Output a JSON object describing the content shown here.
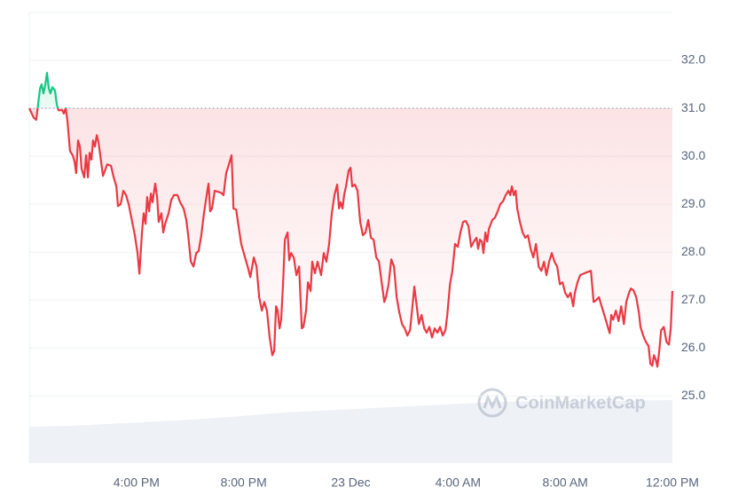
{
  "chart_data": {
    "type": "line",
    "watermark": "CoinMarketCap",
    "baseline": 31.0,
    "color_up": "#16c784",
    "color_down": "#ea3943",
    "xlim": [
      0,
      24
    ],
    "xticks": [
      {
        "value": 4,
        "label": "4:00 PM"
      },
      {
        "value": 8,
        "label": "8:00 PM"
      },
      {
        "value": 12,
        "label": "23 Dec"
      },
      {
        "value": 16,
        "label": "4:00 AM"
      },
      {
        "value": 20,
        "label": "8:00 AM"
      },
      {
        "value": 24,
        "label": "12:00 PM"
      }
    ],
    "ylim": [
      23.6,
      33.0
    ],
    "yticks": [
      {
        "value": 25,
        "label": "25.0"
      },
      {
        "value": 26,
        "label": "26.0"
      },
      {
        "value": 27,
        "label": "27.0"
      },
      {
        "value": 28,
        "label": "28.0"
      },
      {
        "value": 29,
        "label": "29.0"
      },
      {
        "value": 30,
        "label": "30.0"
      },
      {
        "value": 31,
        "label": "31.0"
      },
      {
        "value": 32,
        "label": "32.0"
      }
    ],
    "grid": true,
    "x": [
      0,
      0.17,
      0.26,
      0.4,
      0.46,
      0.53,
      0.6,
      0.66,
      0.73,
      0.79,
      0.86,
      0.96,
      1.03,
      1.09,
      1.23,
      1.29,
      1.36,
      1.42,
      1.52,
      1.62,
      1.69,
      1.75,
      1.82,
      1.89,
      1.95,
      2.05,
      2.12,
      2.19,
      2.25,
      2.32,
      2.38,
      2.45,
      2.52,
      2.58,
      2.65,
      2.75,
      2.91,
      3.05,
      3.15,
      3.25,
      3.31,
      3.41,
      3.51,
      3.61,
      3.71,
      3.84,
      3.94,
      4.04,
      4.11,
      4.21,
      4.27,
      4.34,
      4.4,
      4.47,
      4.54,
      4.6,
      4.7,
      4.77,
      4.83,
      4.93,
      5.0,
      5.07,
      5.2,
      5.3,
      5.4,
      5.53,
      5.63,
      5.76,
      5.86,
      5.93,
      6.03,
      6.13,
      6.23,
      6.32,
      6.42,
      6.52,
      6.62,
      6.69,
      6.75,
      6.82,
      6.92,
      7.15,
      7.25,
      7.35,
      7.45,
      7.55,
      7.62,
      7.72,
      7.81,
      7.91,
      8.05,
      8.15,
      8.25,
      8.38,
      8.48,
      8.58,
      8.68,
      8.77,
      8.87,
      8.97,
      9.07,
      9.14,
      9.21,
      9.27,
      9.34,
      9.4,
      9.47,
      9.54,
      9.64,
      9.7,
      9.77,
      9.87,
      9.97,
      10.07,
      10.17,
      10.23,
      10.33,
      10.4,
      10.5,
      10.56,
      10.66,
      10.76,
      10.89,
      10.99,
      11.09,
      11.19,
      11.29,
      11.39,
      11.49,
      11.56,
      11.62,
      11.69,
      11.75,
      11.82,
      11.92,
      11.99,
      12.05,
      12.15,
      12.25,
      12.35,
      12.45,
      12.55,
      12.65,
      12.75,
      12.85,
      12.95,
      13.05,
      13.15,
      13.25,
      13.31,
      13.41,
      13.51,
      13.61,
      13.71,
      13.81,
      13.91,
      14.01,
      14.11,
      14.21,
      14.3,
      14.37,
      14.44,
      14.54,
      14.64,
      14.74,
      14.83,
      14.93,
      15.03,
      15.13,
      15.23,
      15.33,
      15.43,
      15.53,
      15.6,
      15.7,
      15.79,
      15.89,
      15.99,
      16.09,
      16.19,
      16.29,
      16.39,
      16.49,
      16.59,
      16.69,
      16.75,
      16.82,
      16.89,
      16.95,
      17.02,
      17.09,
      17.15,
      17.28,
      17.38,
      17.48,
      17.58,
      17.68,
      17.78,
      17.88,
      17.95,
      18.01,
      18.08,
      18.15,
      18.21,
      18.31,
      18.41,
      18.51,
      18.61,
      18.71,
      18.81,
      18.91,
      19.01,
      19.11,
      19.21,
      19.3,
      19.4,
      19.5,
      19.6,
      19.7,
      19.8,
      19.9,
      20.0,
      20.1,
      20.2,
      20.3,
      20.36,
      20.46,
      20.56,
      20.76,
      20.96,
      21.06,
      21.16,
      21.26,
      21.36,
      21.46,
      21.56,
      21.66,
      21.72,
      21.79,
      21.89,
      21.99,
      22.09,
      22.19,
      22.28,
      22.38,
      22.45,
      22.55,
      22.65,
      22.75,
      22.81,
      22.91,
      23.01,
      23.11,
      23.18,
      23.25,
      23.31,
      23.38,
      23.44,
      23.51,
      23.58,
      23.68,
      23.78,
      23.87,
      23.94,
      24.0
    ],
    "values": [
      31.0,
      30.8,
      30.76,
      31.41,
      31.5,
      31.31,
      31.5,
      31.74,
      31.41,
      31.31,
      31.44,
      31.37,
      31.07,
      30.96,
      30.96,
      30.89,
      31.0,
      30.76,
      30.11,
      30.02,
      29.89,
      29.65,
      30.33,
      30.2,
      29.74,
      29.56,
      30.02,
      29.56,
      30.07,
      29.93,
      30.33,
      30.2,
      30.44,
      30.3,
      30.02,
      29.59,
      29.83,
      29.8,
      29.56,
      29.37,
      28.96,
      29.0,
      29.28,
      29.19,
      29.0,
      28.63,
      28.35,
      27.98,
      27.55,
      28.44,
      28.81,
      28.59,
      29.15,
      28.85,
      29.22,
      29.04,
      29.43,
      29.15,
      28.63,
      28.81,
      28.41,
      28.59,
      28.81,
      29.09,
      29.19,
      29.19,
      29.04,
      28.91,
      28.67,
      28.35,
      27.8,
      27.7,
      27.98,
      28.02,
      28.35,
      28.81,
      29.19,
      29.43,
      28.85,
      28.91,
      29.28,
      29.24,
      29.19,
      29.65,
      29.83,
      30.02,
      28.91,
      28.89,
      28.54,
      28.17,
      27.89,
      27.7,
      27.48,
      27.89,
      27.7,
      27.06,
      26.78,
      26.96,
      26.78,
      26.22,
      25.85,
      25.94,
      26.87,
      26.78,
      26.41,
      26.59,
      27.33,
      28.26,
      28.41,
      27.83,
      27.98,
      27.89,
      27.52,
      27.7,
      26.41,
      26.44,
      26.78,
      27.37,
      27.19,
      27.8,
      27.56,
      27.8,
      27.52,
      27.98,
      27.8,
      28.17,
      28.81,
      29.19,
      29.41,
      28.91,
      29.04,
      28.91,
      29.19,
      29.37,
      29.7,
      29.76,
      29.37,
      29.41,
      29.28,
      28.63,
      28.35,
      28.41,
      28.67,
      28.3,
      28.26,
      27.89,
      27.8,
      27.37,
      26.96,
      27.06,
      27.33,
      27.85,
      27.7,
      27.06,
      26.74,
      26.5,
      26.41,
      26.26,
      26.37,
      26.87,
      27.28,
      26.96,
      26.5,
      26.69,
      26.41,
      26.32,
      26.44,
      26.22,
      26.41,
      26.32,
      26.44,
      26.26,
      26.37,
      26.69,
      27.33,
      27.61,
      28.17,
      28.11,
      28.41,
      28.63,
      28.65,
      28.54,
      28.11,
      28.22,
      28.3,
      28.07,
      28.26,
      28.22,
      27.98,
      28.41,
      28.22,
      28.48,
      28.67,
      28.72,
      28.85,
      29.0,
      29.06,
      29.19,
      29.28,
      29.19,
      29.37,
      29.19,
      29.28,
      28.91,
      28.63,
      28.41,
      28.3,
      28.35,
      28.07,
      27.89,
      28.17,
      27.7,
      27.61,
      27.8,
      27.52,
      27.8,
      27.98,
      27.8,
      27.7,
      27.33,
      27.37,
      27.15,
      27.06,
      27.15,
      26.87,
      27.15,
      27.37,
      27.52,
      27.57,
      27.61,
      26.96,
      27.0,
      27.06,
      26.87,
      26.69,
      26.5,
      26.31,
      26.69,
      26.59,
      26.78,
      26.56,
      26.87,
      26.5,
      26.96,
      27.15,
      27.24,
      27.2,
      27.06,
      26.74,
      26.44,
      26.26,
      26.13,
      26.04,
      25.67,
      25.63,
      25.85,
      25.76,
      25.61,
      25.94,
      26.37,
      26.44,
      26.13,
      26.07,
      26.41,
      27.19
    ]
  }
}
